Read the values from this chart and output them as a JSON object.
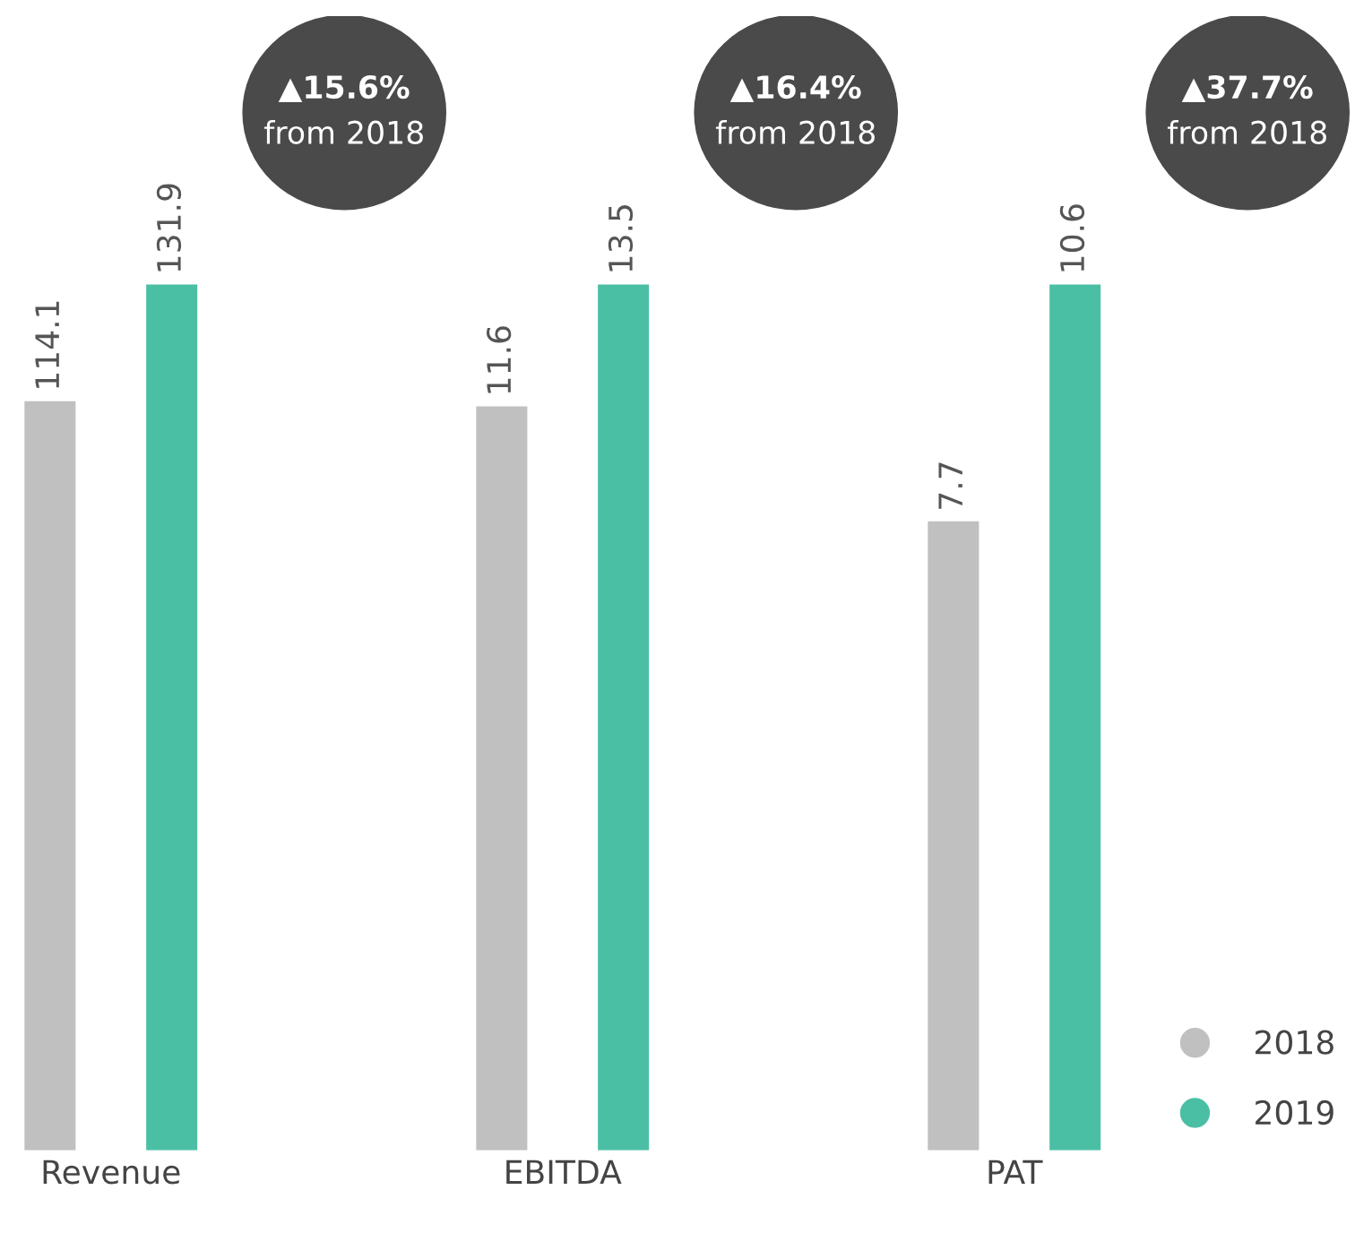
{
  "chart_data": [
    {
      "type": "bar",
      "categories": [
        "Revenue"
      ],
      "series": [
        {
          "color": "#c0c0c0",
          "values": [
            114.1
          ]
        },
        {
          "color": "#4bbfa4",
          "values": [
            131.9
          ]
        }
      ],
      "data_labels": true,
      "tick_labels": "x",
      "annotations": [
        "▲15.6%",
        "from 2018"
      ],
      "grid": false,
      "legend": false
    },
    {
      "type": "bar",
      "categories": [
        "EBITDA"
      ],
      "series": [
        {
          "color": "#c0c0c0",
          "values": [
            11.6
          ]
        },
        {
          "color": "#4bbfa4",
          "values": [
            13.5
          ]
        }
      ],
      "data_labels": true,
      "tick_labels": "x",
      "annotations": [
        "▲16.4%",
        "from 2018"
      ],
      "grid": false,
      "legend": false
    },
    {
      "type": "bar",
      "categories": [
        "PAT"
      ],
      "series": [
        {
          "name": "2018",
          "color": "#c0c0c0",
          "values": [
            7.7
          ]
        },
        {
          "name": "2019",
          "color": "#4bbfa4",
          "values": [
            10.6
          ]
        }
      ],
      "data_labels": true,
      "tick_labels": "x",
      "annotations": [
        "▲37.7%",
        "from 2018"
      ],
      "grid": false,
      "legend": "bottom right"
    }
  ]
}
